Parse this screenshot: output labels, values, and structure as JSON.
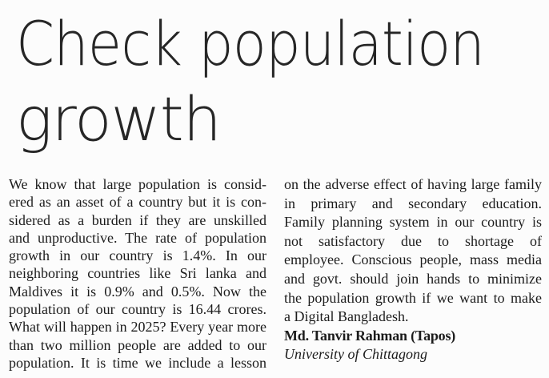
{
  "page": {
    "background_color": "#fcfcfc",
    "headline_color": "#262626",
    "body_text_color": "#1c1c1c"
  },
  "headline": {
    "line1": "Check population",
    "line2": "growth"
  },
  "article": {
    "columns": [
      {
        "id": "left",
        "lines": [
          {
            "text": "We know that large population is consid-",
            "justify": true
          },
          {
            "text": "ered as an asset of a country but it is con-",
            "justify": true
          },
          {
            "text": "sidered as a burden if they are unskilled",
            "justify": true
          },
          {
            "text": "and unproductive. The rate of population",
            "justify": true
          },
          {
            "text": "growth in our country is 1.4%. In our",
            "justify": true
          },
          {
            "text": "neighboring countries like Sri lanka and",
            "justify": true
          },
          {
            "text": "Maldives it is 0.9% and 0.5%. Now the",
            "justify": true
          },
          {
            "text": "population of our country is 16.44 crores.",
            "justify": true
          },
          {
            "text": "What will happen in 2025? Every year more",
            "justify": true
          },
          {
            "text": "than two million people are added to our",
            "justify": true
          },
          {
            "text": "population. It is time we include a lesson",
            "justify": true
          }
        ]
      },
      {
        "id": "right",
        "lines": [
          {
            "text": "on the adverse effect of having large family",
            "justify": true
          },
          {
            "text": "in primary and secondary education.",
            "justify": true
          },
          {
            "text": "Family planning system in our country is",
            "justify": true
          },
          {
            "text": "not satisfactory due to shortage of",
            "justify": true
          },
          {
            "text": "employee. Conscious people, mass media",
            "justify": true
          },
          {
            "text": "and govt. should join hands to minimize",
            "justify": true
          },
          {
            "text": "the population growth if we want to make",
            "justify": true
          },
          {
            "text": "a Digital Bangladesh.",
            "justify": false
          },
          {
            "text": "Md. Tanvir Rahman (Tapos)",
            "justify": false,
            "bold": true
          },
          {
            "text": "University of Chittagong",
            "justify": false,
            "italic": true
          }
        ]
      }
    ],
    "author": "Md. Tanvir Rahman (Tapos)",
    "affiliation": "University of Chittagong"
  }
}
